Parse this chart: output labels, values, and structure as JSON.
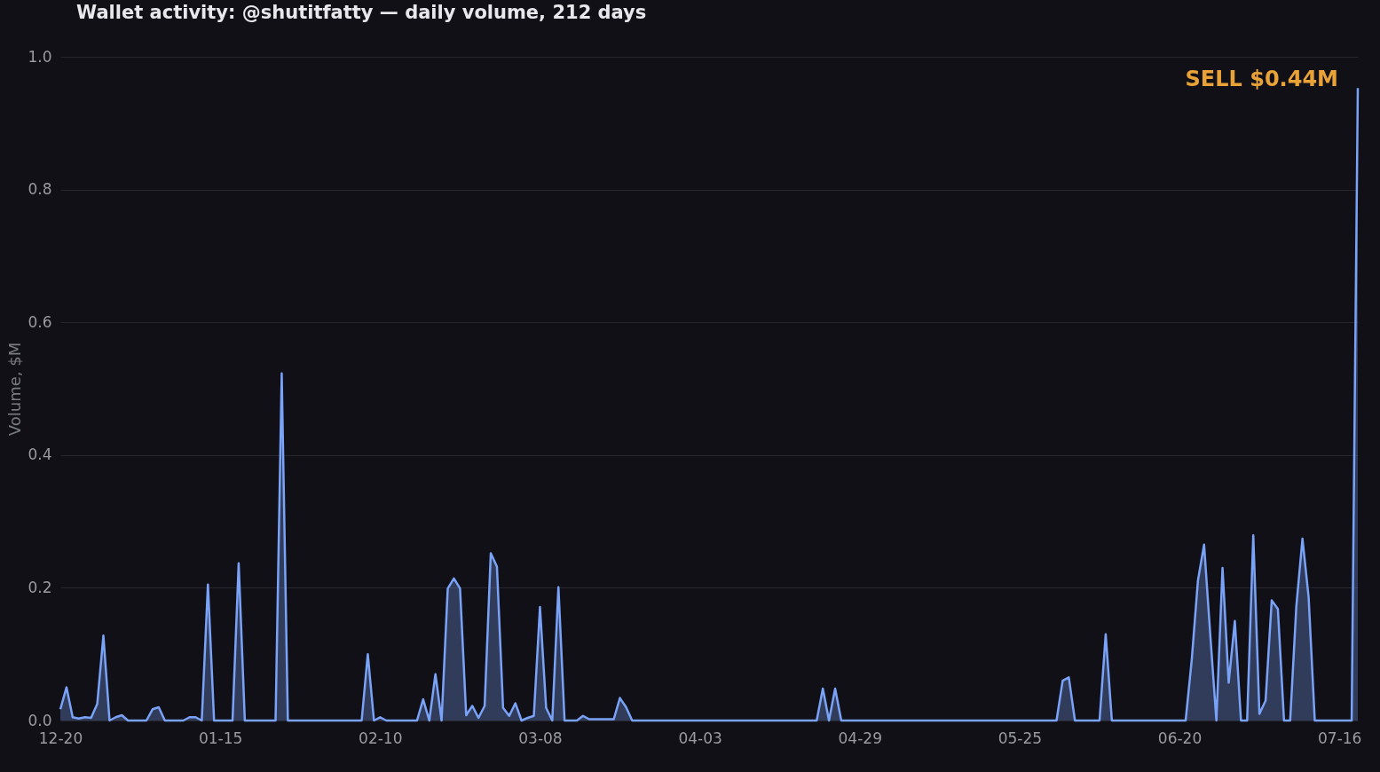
{
  "chart_data": {
    "type": "area",
    "title": "Wallet activity: @shutitfatty — daily volume, 212 days",
    "ylabel": "Volume, $M",
    "categories": [
      "12-20",
      null,
      null,
      null,
      null,
      null,
      null,
      null,
      null,
      null,
      null,
      null,
      null,
      null,
      null,
      null,
      null,
      null,
      null,
      null,
      null,
      null,
      null,
      null,
      null,
      null,
      "01-15",
      null,
      null,
      null,
      null,
      null,
      null,
      null,
      null,
      null,
      null,
      null,
      null,
      null,
      null,
      null,
      null,
      null,
      null,
      null,
      null,
      null,
      null,
      null,
      null,
      null,
      "02-10",
      null,
      null,
      null,
      null,
      null,
      null,
      null,
      null,
      null,
      null,
      null,
      null,
      null,
      null,
      null,
      null,
      null,
      null,
      null,
      null,
      null,
      null,
      null,
      null,
      null,
      "03-08",
      null,
      null,
      null,
      null,
      null,
      null,
      null,
      null,
      null,
      null,
      null,
      null,
      null,
      null,
      null,
      null,
      null,
      null,
      null,
      null,
      null,
      null,
      null,
      null,
      null,
      "04-03",
      null,
      null,
      null,
      null,
      null,
      null,
      null,
      null,
      null,
      null,
      null,
      null,
      null,
      null,
      null,
      null,
      null,
      null,
      null,
      null,
      null,
      null,
      null,
      null,
      null,
      "04-29",
      null,
      null,
      null,
      null,
      null,
      null,
      null,
      null,
      null,
      null,
      null,
      null,
      null,
      null,
      null,
      null,
      null,
      null,
      null,
      null,
      null,
      null,
      null,
      null,
      null,
      "05-25",
      null,
      null,
      null,
      null,
      null,
      null,
      null,
      null,
      null,
      null,
      null,
      null,
      null,
      null,
      null,
      null,
      null,
      null,
      null,
      null,
      null,
      null,
      null,
      null,
      null,
      "06-20",
      null,
      null,
      null,
      null,
      null,
      null,
      null,
      null,
      null,
      null,
      null,
      null,
      null,
      null,
      null,
      null,
      null,
      null,
      null,
      null,
      null,
      null,
      null,
      null,
      null,
      "07-16",
      null,
      null,
      null
    ],
    "series": [
      {
        "color": "#7aa2f7",
        "values": [
          0.017,
          0.05,
          0.005,
          0.003,
          0.005,
          0.004,
          0.025,
          0.128,
          0,
          0.005,
          0.008,
          0,
          0,
          0,
          0,
          0.017,
          0.02,
          0,
          0,
          0,
          0,
          0.005,
          0.005,
          0,
          0.205,
          0,
          0,
          0,
          0,
          0.237,
          0,
          0,
          0,
          0,
          0,
          0,
          0.523,
          0,
          0,
          0,
          0,
          0,
          0,
          0,
          0,
          0,
          0,
          0,
          0,
          0,
          0.1,
          0,
          0.005,
          0,
          0,
          0,
          0,
          0,
          0,
          0.032,
          0,
          0.07,
          0,
          0.199,
          0.214,
          0.199,
          0.008,
          0.022,
          0.004,
          0.022,
          0.252,
          0.232,
          0.019,
          0.007,
          0.026,
          0,
          0.004,
          0.007,
          0.171,
          0.019,
          0,
          0.201,
          0,
          0,
          0,
          0.007,
          0.002,
          0.002,
          0.002,
          0.002,
          0.002,
          0.034,
          0.02,
          0,
          0,
          0,
          0,
          0,
          0,
          0,
          0,
          0,
          0,
          0,
          0,
          0,
          0,
          0,
          0,
          0,
          0,
          0,
          0,
          0,
          0,
          0,
          0,
          0,
          0,
          0,
          0,
          0,
          0,
          0,
          0.048,
          0,
          0.048,
          0,
          0,
          0,
          0,
          0,
          0,
          0,
          0,
          0,
          0,
          0,
          0,
          0,
          0,
          0,
          0,
          0,
          0,
          0,
          0,
          0,
          0,
          0,
          0,
          0,
          0,
          0,
          0,
          0,
          0,
          0,
          0,
          0,
          0,
          0,
          0,
          0.06,
          0.065,
          0,
          0,
          0,
          0,
          0,
          0.13,
          0,
          0,
          0,
          0,
          0,
          0,
          0,
          0,
          0,
          0,
          0,
          0,
          0,
          0.092,
          0.211,
          0.265,
          0.13,
          0,
          0.23,
          0.057,
          0.15,
          0,
          0,
          0.279,
          0.01,
          0.03,
          0.181,
          0.168,
          0,
          0,
          0.172,
          0.274,
          0.186,
          0,
          0,
          0,
          0,
          0,
          0,
          0,
          0.953
        ]
      }
    ],
    "ylim": [
      0,
      1
    ],
    "yticks": [
      {
        "value": 0,
        "label": "0.0"
      },
      {
        "value": 0.2,
        "label": "0.2"
      },
      {
        "value": 0.4,
        "label": "0.4"
      },
      {
        "value": 0.6,
        "label": "0.6"
      },
      {
        "value": 0.8,
        "label": "0.8"
      },
      {
        "value": 1,
        "label": "1.0"
      }
    ],
    "grid": "y",
    "annotations": [
      "SELL $0.44M"
    ]
  }
}
